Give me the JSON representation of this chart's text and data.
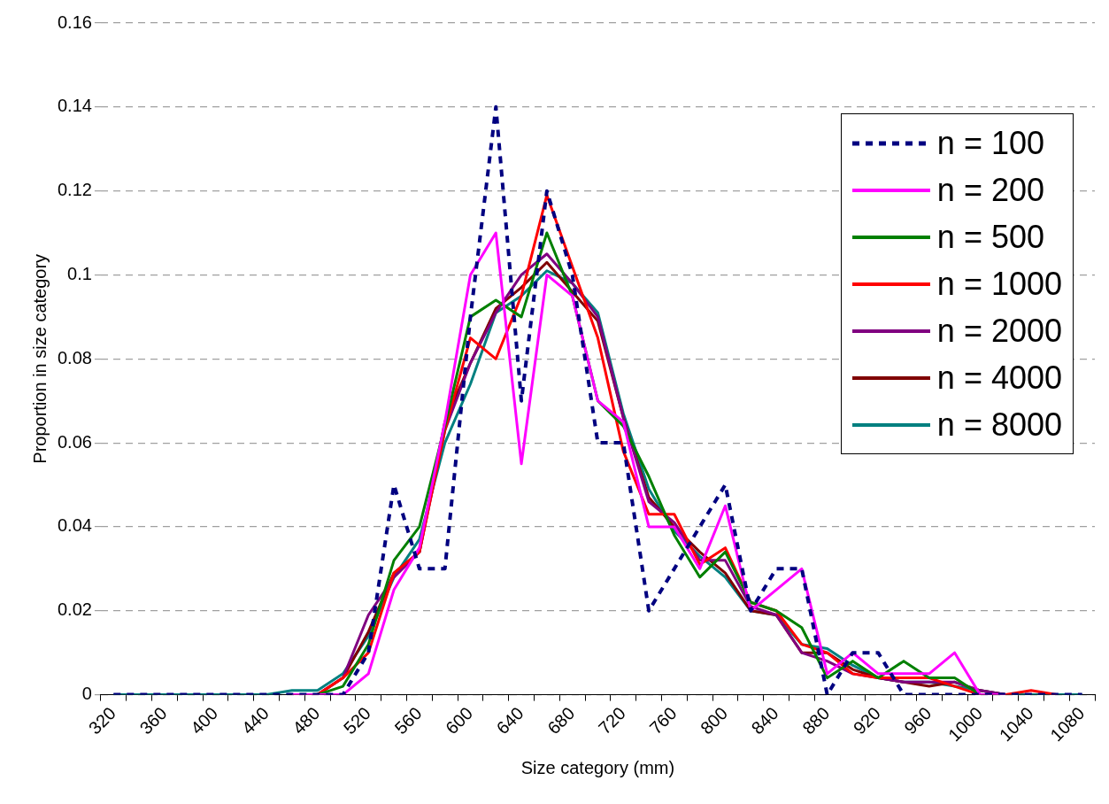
{
  "chart_data": {
    "type": "line",
    "xlabel": "Size category (mm)",
    "ylabel": "Proportion in size category",
    "categories": [
      "320",
      null,
      "360",
      null,
      "400",
      null,
      "440",
      null,
      "480",
      null,
      "520",
      null,
      "560",
      null,
      "600",
      null,
      "640",
      null,
      "680",
      null,
      "720",
      null,
      "760",
      null,
      "800",
      null,
      "840",
      null,
      "880",
      null,
      "920",
      null,
      "960",
      null,
      "1000",
      null,
      "1040",
      null,
      "1080"
    ],
    "ylim": [
      0,
      0.16
    ],
    "yticks": [
      0,
      0.02,
      0.04,
      0.06,
      0.08,
      0.1,
      0.12,
      0.14,
      0.16
    ],
    "grid": "y",
    "legend": "top right",
    "marker": "none",
    "line_style": "solid",
    "series": [
      {
        "name": "n = 100",
        "color": "#000080",
        "line_style": "dashed",
        "values": [
          0,
          0,
          0,
          0,
          0,
          0,
          0,
          0,
          0,
          0,
          0.01,
          0.05,
          0.03,
          0.03,
          0.09,
          0.14,
          0.07,
          0.12,
          0.1,
          0.06,
          0.06,
          0.02,
          0.03,
          0.04,
          0.05,
          0.02,
          0.03,
          0.03,
          0,
          0.01,
          0.01,
          0,
          0,
          0,
          0,
          0,
          0,
          0,
          0
        ]
      },
      {
        "name": "n = 200",
        "color": "#ff00ff",
        "values": [
          null,
          null,
          null,
          null,
          null,
          null,
          null,
          0,
          0,
          0,
          0.005,
          0.025,
          0.035,
          0.065,
          0.1,
          0.11,
          0.055,
          0.1,
          0.095,
          0.07,
          0.065,
          0.04,
          0.04,
          0.03,
          0.045,
          0.02,
          0.025,
          0.03,
          0.005,
          0.01,
          0.005,
          0.005,
          0.005,
          0.01,
          0,
          0,
          null,
          null,
          null
        ]
      },
      {
        "name": "n = 500",
        "color": "#008000",
        "values": [
          null,
          null,
          null,
          null,
          null,
          null,
          null,
          0,
          0,
          0.002,
          0.012,
          0.032,
          0.04,
          0.064,
          0.09,
          0.094,
          0.09,
          0.11,
          0.095,
          0.07,
          0.064,
          0.052,
          0.038,
          0.028,
          0.034,
          0.022,
          0.02,
          0.016,
          0.004,
          0.008,
          0.004,
          0.008,
          0.004,
          0.004,
          0,
          0,
          null,
          null,
          null
        ]
      },
      {
        "name": "n = 1000",
        "color": "#ff0000",
        "values": [
          null,
          null,
          null,
          null,
          null,
          null,
          null,
          0,
          0,
          0.004,
          0.01,
          0.029,
          0.034,
          0.063,
          0.085,
          0.08,
          0.095,
          0.119,
          0.102,
          0.085,
          0.058,
          0.043,
          0.043,
          0.031,
          0.035,
          0.022,
          0.02,
          0.012,
          0.01,
          0.005,
          0.004,
          0.004,
          0.004,
          0.002,
          0,
          0,
          0.001,
          0,
          null
        ]
      },
      {
        "name": "n = 2000",
        "color": "#800080",
        "values": [
          null,
          null,
          null,
          null,
          null,
          null,
          null,
          0,
          0,
          0.004,
          0.019,
          0.028,
          0.034,
          0.063,
          0.079,
          0.091,
          0.1,
          0.105,
          0.098,
          0.09,
          0.066,
          0.046,
          0.041,
          0.032,
          0.032,
          0.021,
          0.019,
          0.01,
          0.008,
          0.005,
          0.004,
          0.003,
          0.003,
          0.003,
          0.001,
          0,
          null,
          null,
          null
        ]
      },
      {
        "name": "n = 4000",
        "color": "#800000",
        "values": [
          null,
          null,
          null,
          null,
          null,
          null,
          null,
          0,
          0,
          0.004,
          0.015,
          0.029,
          0.034,
          0.065,
          0.079,
          0.092,
          0.097,
          0.103,
          0.096,
          0.089,
          0.066,
          0.047,
          0.04,
          0.034,
          0.029,
          0.02,
          0.019,
          0.01,
          0.01,
          0.006,
          0.004,
          0.003,
          0.002,
          0.003,
          0.001,
          0,
          null,
          null,
          null
        ]
      },
      {
        "name": "n = 8000",
        "color": "#008080",
        "values": [
          0,
          0,
          0,
          0,
          0,
          0,
          0,
          0.001,
          0.001,
          0.005,
          0.014,
          0.028,
          0.037,
          0.06,
          0.074,
          0.091,
          0.095,
          0.101,
          0.098,
          0.091,
          0.067,
          0.049,
          0.039,
          0.033,
          0.028,
          0.02,
          0.019,
          0.012,
          0.011,
          0.007,
          0.004,
          0.003,
          0.003,
          0.002,
          0.001,
          0,
          0,
          0,
          0
        ]
      }
    ]
  }
}
